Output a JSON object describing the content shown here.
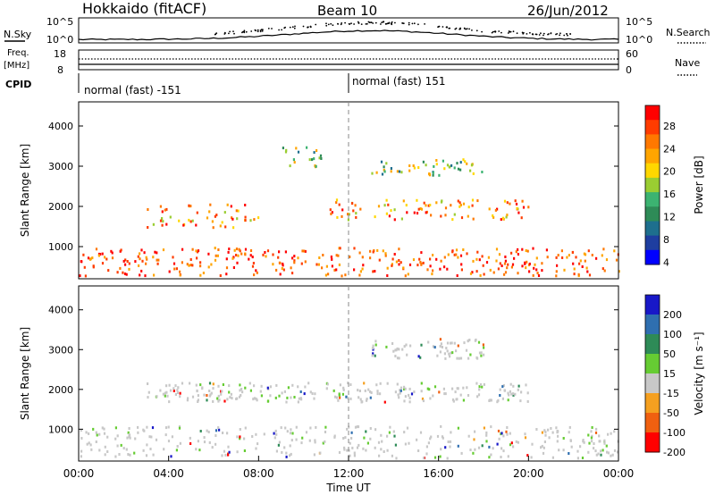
{
  "header": {
    "station": "Hokkaido (fitACF)",
    "beam": "Beam 10",
    "date": "26/Jun/2012"
  },
  "strip_sky": {
    "left_label": "N.Sky",
    "left_ticks": [
      "10^5",
      "10^0"
    ],
    "right_label": "N.Search",
    "right_ticks": [
      "10^5",
      "10^0"
    ]
  },
  "strip_freq": {
    "left_label_1": "Freq.",
    "left_label_2": "[MHz]",
    "left_ticks": [
      "18",
      "8"
    ],
    "right_label": "Nave",
    "right_ticks": [
      "60",
      "0"
    ]
  },
  "cpid": {
    "label": "CPID",
    "segments": [
      {
        "name": "normal (fast) -151",
        "start_hour": 0
      },
      {
        "name": "normal (fast) 151",
        "start_hour": 12
      }
    ]
  },
  "chart_data": [
    {
      "type": "heatmap",
      "name": "power",
      "xlabel": "",
      "ylabel": "Slant Range [km]",
      "xlim_hours": [
        0,
        24
      ],
      "ylim_km": [
        200,
        4600
      ],
      "yticks": [
        1000,
        2000,
        3000,
        4000
      ],
      "colorbar": {
        "label": "Power [dB]",
        "ticks": [
          "28",
          "24",
          "20",
          "16",
          "12",
          "8",
          "4"
        ],
        "colors": [
          "#ff0000",
          "#ff3c00",
          "#ff7800",
          "#ffa500",
          "#ffd700",
          "#9acd32",
          "#3cb371",
          "#2e8b57",
          "#1e6f8e",
          "#1e3ea0",
          "#0000ff"
        ]
      },
      "echo_bands": [
        {
          "start_hour": 0.0,
          "end_hour": 24.0,
          "range_km": [
            300,
            1000
          ],
          "level": "high"
        },
        {
          "start_hour": 3.0,
          "end_hour": 8.0,
          "range_km": [
            1500,
            2100
          ],
          "level": "mid"
        },
        {
          "start_hour": 11.0,
          "end_hour": 20.0,
          "range_km": [
            1700,
            2200
          ],
          "level": "mid"
        },
        {
          "start_hour": 13.0,
          "end_hour": 18.0,
          "range_km": [
            2800,
            3200
          ],
          "level": "low"
        },
        {
          "start_hour": 9.0,
          "end_hour": 11.0,
          "range_km": [
            3000,
            3500
          ],
          "level": "low"
        }
      ]
    },
    {
      "type": "heatmap",
      "name": "velocity",
      "xlabel": "Time UT",
      "ylabel": "Slant Range [km]",
      "xlim_hours": [
        0,
        24
      ],
      "ylim_km": [
        200,
        4600
      ],
      "yticks": [
        1000,
        2000,
        3000,
        4000
      ],
      "xticks": [
        "00:00",
        "04:00",
        "08:00",
        "12:00",
        "16:00",
        "20:00",
        "00:00"
      ],
      "colorbar": {
        "label": "Velocity [m s⁻¹]",
        "ticks": [
          "200",
          "100",
          "50",
          "15",
          "-15",
          "-50",
          "-100",
          "-200"
        ],
        "colors": [
          "#1818c8",
          "#2f6fb0",
          "#2e8b57",
          "#66cc33",
          "#c8c8c8",
          "#f5a020",
          "#f06010",
          "#ff0000"
        ]
      },
      "echo_bands": [
        {
          "start_hour": 0.0,
          "end_hour": 24.0,
          "range_km": [
            300,
            1100
          ],
          "level": "ground-scatter"
        },
        {
          "start_hour": 3.0,
          "end_hour": 20.0,
          "range_km": [
            1700,
            2200
          ],
          "level": "ground-scatter"
        },
        {
          "start_hour": 13.0,
          "end_hour": 18.0,
          "range_km": [
            2800,
            3300
          ],
          "level": "ground-scatter"
        }
      ]
    }
  ]
}
